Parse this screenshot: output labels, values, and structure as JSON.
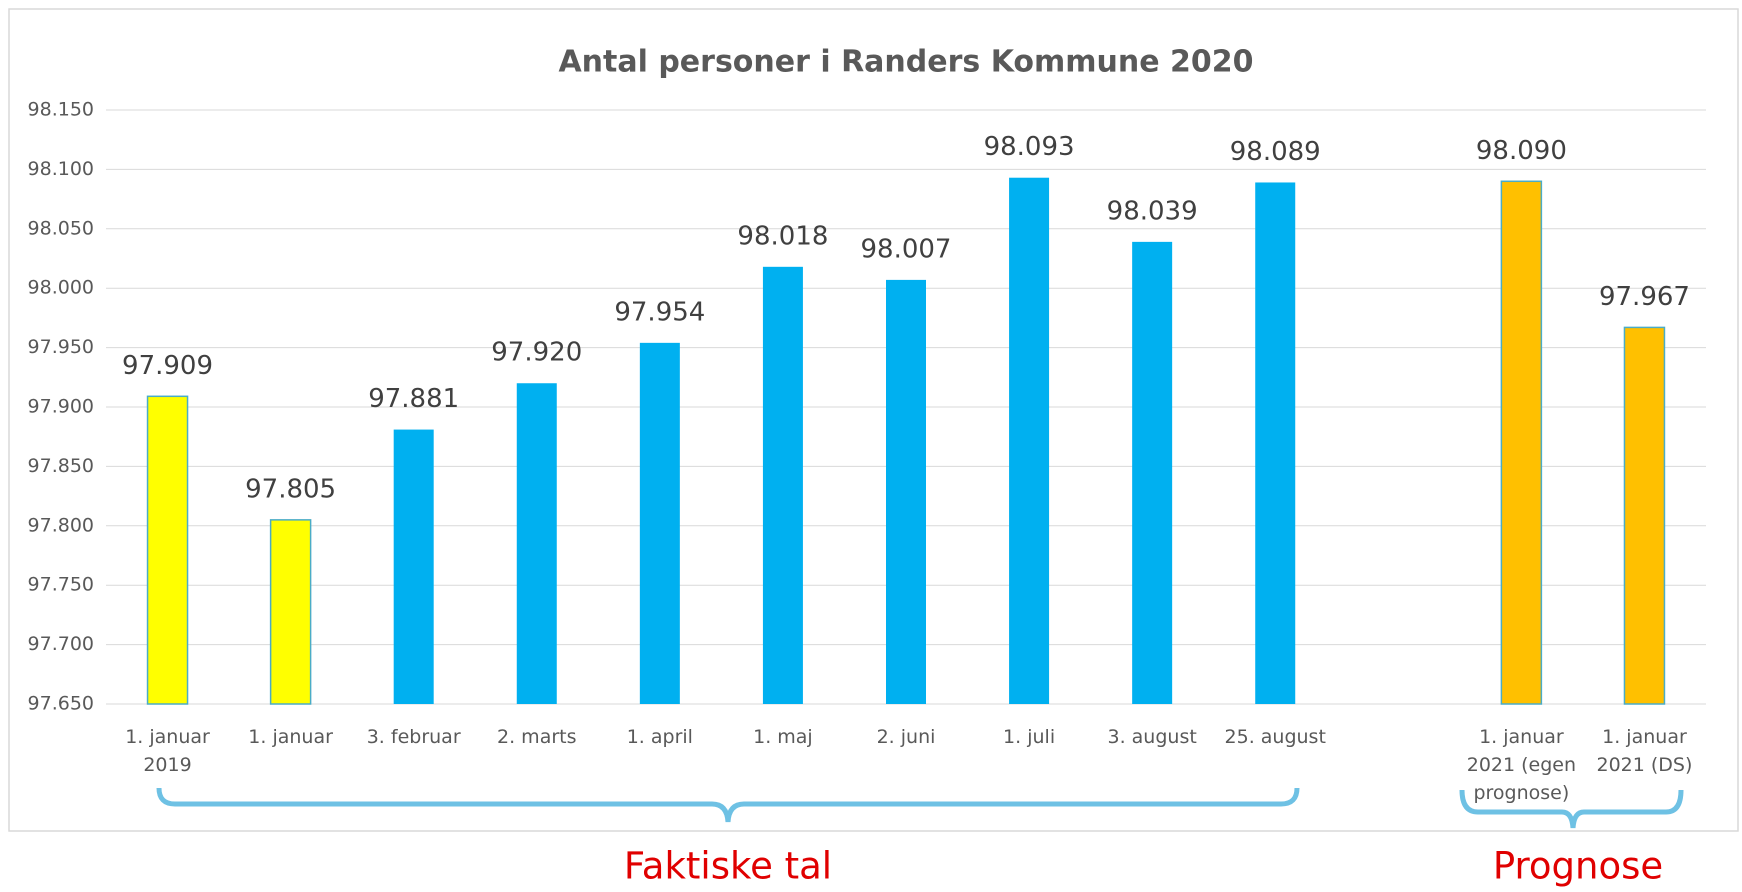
{
  "chart_data": {
    "type": "bar",
    "title": "Antal personer i Randers Kommune 2020",
    "categories": [
      "1. januar 2019",
      "1. januar",
      "3. februar",
      "2. marts",
      "1. april",
      "1. maj",
      "2. juni",
      "1. juli",
      "3. august",
      "25. august",
      null,
      "1. januar 2021 (egen prognose)",
      "1. januar 2021 (DS)"
    ],
    "values": [
      97909,
      97805,
      97881,
      97920,
      97954,
      98018,
      98007,
      98093,
      98039,
      98089,
      null,
      98090,
      97967
    ],
    "value_labels": [
      "97.909",
      "97.805",
      "97.881",
      "97.920",
      "97.954",
      "98.018",
      "98.007",
      "98.093",
      "98.039",
      "98.089",
      null,
      "98.090",
      "97.967"
    ],
    "colors": [
      "#ffff00",
      "#ffff00",
      "#00b0f0",
      "#00b0f0",
      "#00b0f0",
      "#00b0f0",
      "#00b0f0",
      "#00b0f0",
      "#00b0f0",
      "#00b0f0",
      null,
      "#ffc000",
      "#ffc000"
    ],
    "ylim": [
      97650,
      98150
    ],
    "yticks": [
      {
        "value": 97650,
        "label": "97.650"
      },
      {
        "value": 97700,
        "label": "97.700"
      },
      {
        "value": 97750,
        "label": "97.750"
      },
      {
        "value": 97800,
        "label": "97.800"
      },
      {
        "value": 97850,
        "label": "97.850"
      },
      {
        "value": 97900,
        "label": "97.900"
      },
      {
        "value": 97950,
        "label": "97.950"
      },
      {
        "value": 98000,
        "label": "98.000"
      },
      {
        "value": 98050,
        "label": "98.050"
      },
      {
        "value": 98100,
        "label": "98.100"
      },
      {
        "value": 98150,
        "label": "98.150"
      }
    ],
    "grid": true,
    "annotations": [
      "Faktiske tal",
      "Prognose"
    ]
  }
}
